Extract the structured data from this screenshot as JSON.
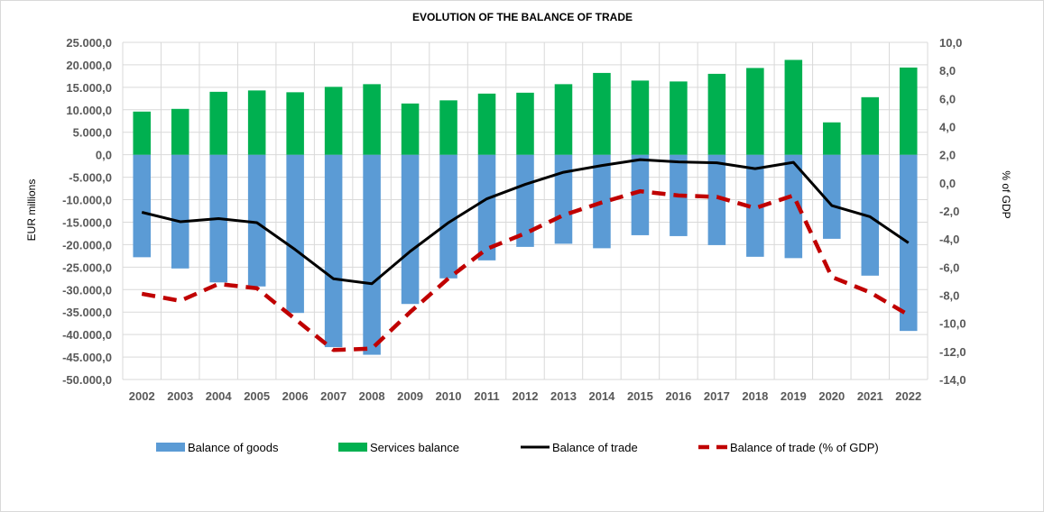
{
  "chart_data": {
    "type": "bar",
    "title": "EVOLUTION OF THE BALANCE OF TRADE",
    "ylabel": "EUR millions",
    "y2label": "% of GDP",
    "ylim": [
      -50000,
      25000
    ],
    "y2lim": [
      -14,
      10
    ],
    "yticks": [
      25000,
      20000,
      15000,
      10000,
      5000,
      0,
      -5000,
      -10000,
      -15000,
      -20000,
      -25000,
      -30000,
      -35000,
      -40000,
      -45000,
      -50000
    ],
    "ytick_labels": [
      "25.000,0",
      "20.000,0",
      "15.000,0",
      "10.000,0",
      "5.000,0",
      "0,0",
      "-5.000,0",
      "-10.000,0",
      "-15.000,0",
      "-20.000,0",
      "-25.000,0",
      "-30.000,0",
      "-35.000,0",
      "-40.000,0",
      "-45.000,0",
      "-50.000,0"
    ],
    "y2ticks": [
      10,
      8,
      6,
      4,
      2,
      0,
      -2,
      -4,
      -6,
      -8,
      -10,
      -12,
      -14
    ],
    "y2tick_labels": [
      "10,0",
      "8,0",
      "6,0",
      "4,0",
      "2,0",
      "0,0",
      "-2,0",
      "-4,0",
      "-6,0",
      "-8,0",
      "-10,0",
      "-12,0",
      "-14,0"
    ],
    "categories": [
      "2002",
      "2003",
      "2004",
      "2005",
      "2006",
      "2007",
      "2008",
      "2009",
      "2010",
      "2011",
      "2012",
      "2013",
      "2014",
      "2015",
      "2016",
      "2017",
      "2018",
      "2019",
      "2020",
      "2021",
      "2022"
    ],
    "grid": true,
    "legend_position": "bottom",
    "series": [
      {
        "name": "Balance of goods",
        "type": "bar",
        "axis": "left",
        "color": "#5b9bd5",
        "values": [
          -22800,
          -25300,
          -28400,
          -29300,
          -35200,
          -42800,
          -44500,
          -33200,
          -27500,
          -23500,
          -20500,
          -19800,
          -20800,
          -17900,
          -18100,
          -20100,
          -22700,
          -23000,
          -18700,
          -26900,
          -39200
        ]
      },
      {
        "name": "Services balance",
        "type": "bar",
        "axis": "left",
        "color": "#00b050",
        "values": [
          9600,
          10200,
          14000,
          14300,
          13900,
          15100,
          15700,
          11400,
          12100,
          13600,
          13800,
          15700,
          18200,
          16500,
          16300,
          18000,
          19300,
          21100,
          7200,
          12800,
          19400
        ]
      },
      {
        "name": "Balance of trade",
        "type": "line",
        "axis": "left",
        "color": "#000000",
        "values": [
          -12800,
          -14900,
          -14200,
          -15100,
          -21100,
          -27600,
          -28700,
          -21500,
          -15100,
          -9800,
          -6600,
          -3900,
          -2400,
          -1100,
          -1600,
          -1800,
          -3100,
          -1700,
          -11300,
          -13800,
          -19600
        ]
      },
      {
        "name": "Balance of trade (% of GDP)",
        "type": "line",
        "axis": "right",
        "color": "#c00000",
        "dashed": true,
        "values": [
          -7.9,
          -8.4,
          -7.2,
          -7.5,
          -9.7,
          -11.9,
          -11.8,
          -9.2,
          -6.8,
          -4.7,
          -3.6,
          -2.3,
          -1.4,
          -0.6,
          -0.9,
          -1.0,
          -1.8,
          -0.9,
          -6.7,
          -7.8,
          -9.4
        ]
      }
    ]
  }
}
